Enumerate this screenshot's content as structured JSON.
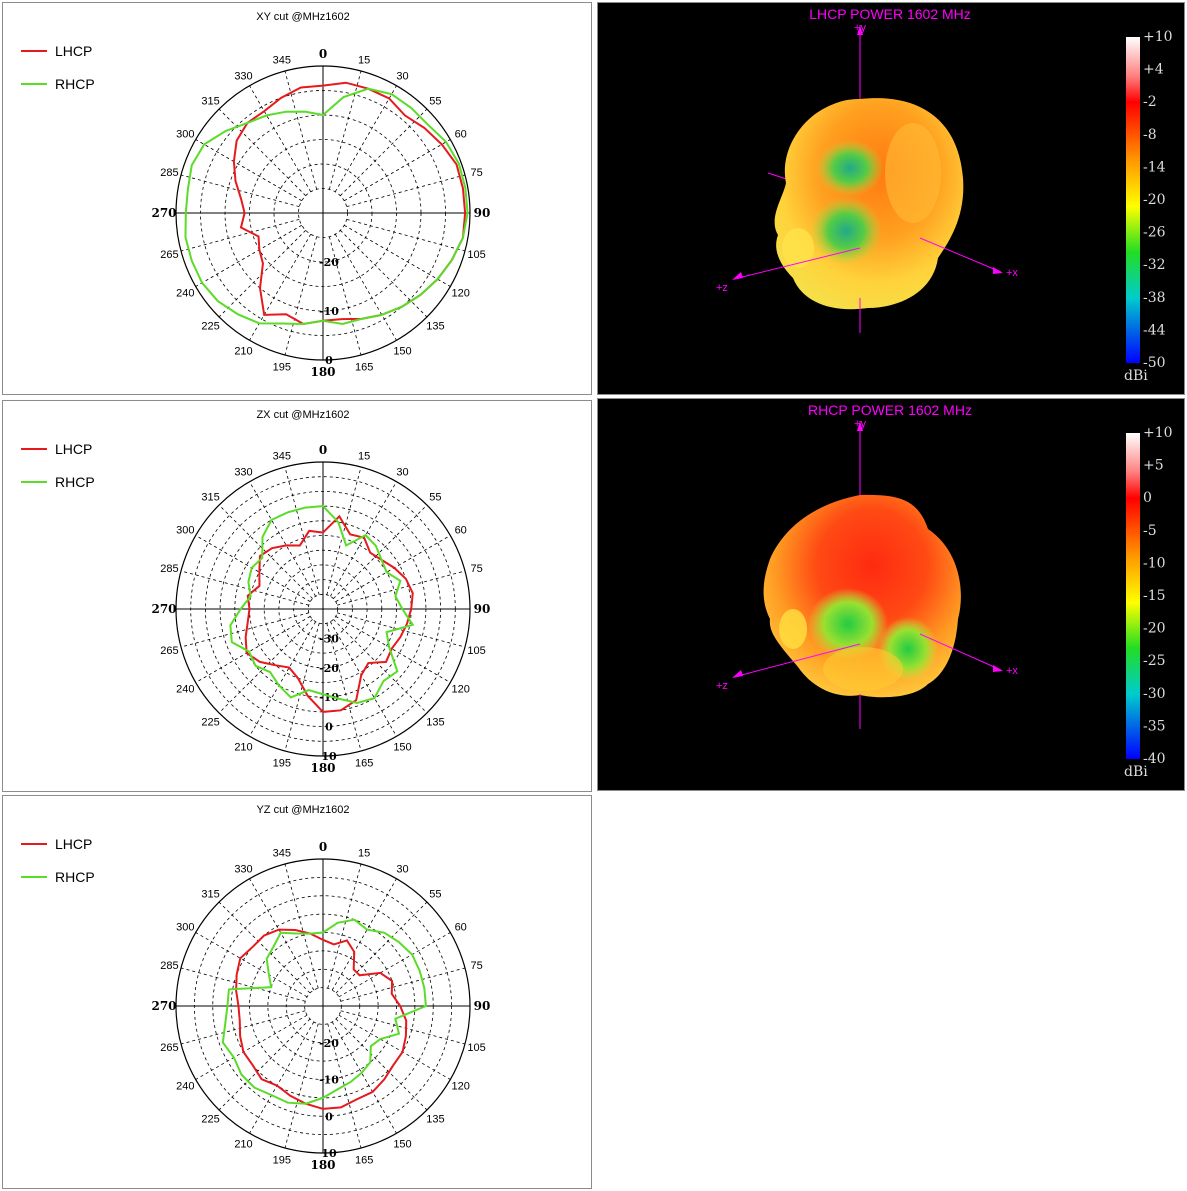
{
  "colors": {
    "lhcp": "#e6191c",
    "rhcp": "#5adc28",
    "axis3d": "#ff00ff",
    "panel_border": "#8c8c8c"
  },
  "chart_data": [
    {
      "type": "polar",
      "title": "XY cut @MHz1602",
      "angle_labels": [
        "0",
        "15",
        "30",
        "55",
        "60",
        "75",
        "90",
        "105",
        "120",
        "135",
        "150",
        "165",
        "180",
        "195",
        "210",
        "225",
        "240",
        "265",
        "270",
        "285",
        "300",
        "315",
        "330",
        "345"
      ],
      "radial_labels": [
        "-20",
        "-10",
        "0"
      ],
      "rlim": [
        -30,
        0
      ],
      "rings": [
        -25,
        -20,
        -15,
        -10,
        -5,
        0
      ],
      "grid": true,
      "legend_position": "top-left",
      "series": [
        {
          "name": "LHCP",
          "values": [
            -4,
            -3,
            -3,
            -3,
            -4,
            -3,
            -2,
            -1,
            -1,
            -1,
            -1,
            -2,
            -3,
            -4,
            -5,
            -6,
            -7,
            -8,
            -8,
            -7,
            -8,
            -6,
            -10,
            -14,
            -15,
            -16,
            -13,
            -14,
            -13,
            -11,
            -9,
            -7,
            -6,
            -6,
            -5,
            -4
          ],
          "angles": [
            0,
            10,
            20,
            30,
            40,
            50,
            60,
            70,
            80,
            90,
            100,
            110,
            120,
            130,
            140,
            150,
            160,
            170,
            180,
            190,
            200,
            210,
            220,
            230,
            240,
            250,
            260,
            270,
            280,
            290,
            300,
            310,
            320,
            330,
            340,
            350
          ]
        },
        {
          "name": "RHCP",
          "values": [
            -10,
            -6,
            -3,
            -2,
            -2,
            -2,
            -1,
            -0.5,
            -0.5,
            -0.5,
            -1,
            -2,
            -3,
            -4,
            -5,
            -6,
            -7,
            -7,
            -8,
            -7,
            -6,
            -4,
            -3,
            -2,
            -1.5,
            -1.5,
            -1.5,
            -2,
            -2,
            -1.5,
            -2,
            -4,
            -6,
            -7,
            -8,
            -9
          ],
          "angles": [
            0,
            10,
            20,
            30,
            40,
            50,
            60,
            70,
            80,
            90,
            100,
            110,
            120,
            130,
            140,
            150,
            160,
            170,
            180,
            190,
            200,
            210,
            220,
            230,
            240,
            250,
            260,
            270,
            280,
            290,
            300,
            310,
            320,
            330,
            340,
            350
          ]
        }
      ]
    },
    {
      "type": "polar",
      "title": "ZX cut @MHz1602",
      "angle_labels": [
        "0",
        "15",
        "30",
        "55",
        "60",
        "75",
        "90",
        "105",
        "120",
        "135",
        "150",
        "165",
        "180",
        "195",
        "210",
        "225",
        "240",
        "265",
        "270",
        "285",
        "300",
        "315",
        "330",
        "345"
      ],
      "radial_labels": [
        "-30",
        "-20",
        "-10",
        "0",
        "10"
      ],
      "rlim": [
        -40,
        10
      ],
      "rings": [
        -35,
        -30,
        -25,
        -20,
        -15,
        -10,
        -5,
        0,
        5,
        10
      ],
      "grid": true,
      "legend_position": "top-left",
      "series": [
        {
          "name": "LHCP",
          "values": [
            -14,
            -8,
            -13,
            -12,
            -15,
            -14,
            -12,
            -10,
            -9,
            -10,
            -11,
            -12,
            -13,
            -12,
            -16,
            -14,
            -7,
            -5,
            -5,
            -10,
            -15,
            -17,
            -15,
            -12,
            -10,
            -12,
            -14,
            -15,
            -14,
            -17,
            -15,
            -12,
            -13,
            -15,
            -17,
            -13
          ],
          "angles": [
            0,
            10,
            20,
            30,
            40,
            50,
            60,
            70,
            80,
            90,
            100,
            110,
            120,
            130,
            140,
            150,
            160,
            170,
            180,
            190,
            200,
            210,
            220,
            230,
            240,
            250,
            260,
            270,
            280,
            290,
            300,
            310,
            320,
            330,
            340,
            350
          ]
        },
        {
          "name": "RHCP",
          "values": [
            -5,
            -10,
            -17,
            -11,
            -12,
            -14,
            -15,
            -12,
            -15,
            -13,
            -9,
            -17,
            -14,
            -7,
            -8,
            -5,
            -6,
            -9,
            -11,
            -12,
            -8,
            -10,
            -12,
            -10,
            -11,
            -7,
            -8,
            -12,
            -15,
            -13,
            -12,
            -13,
            -8,
            -5,
            -5,
            -5
          ],
          "angles": [
            0,
            10,
            20,
            30,
            40,
            50,
            60,
            70,
            80,
            90,
            100,
            110,
            120,
            130,
            140,
            150,
            160,
            170,
            180,
            190,
            200,
            210,
            220,
            230,
            240,
            250,
            260,
            270,
            280,
            290,
            300,
            310,
            320,
            330,
            340,
            350
          ]
        }
      ]
    },
    {
      "type": "polar",
      "title": "YZ cut @MHz1602",
      "angle_labels": [
        "0",
        "15",
        "30",
        "55",
        "60",
        "75",
        "90",
        "105",
        "120",
        "135",
        "150",
        "165",
        "180",
        "195",
        "210",
        "225",
        "240",
        "265",
        "270",
        "285",
        "300",
        "315",
        "330",
        "345"
      ],
      "radial_labels": [
        "-20",
        "-10",
        "0",
        "10"
      ],
      "rlim": [
        -30,
        10
      ],
      "rings": [
        -25,
        -20,
        -15,
        -10,
        -5,
        0,
        5,
        10
      ],
      "grid": true,
      "legend_position": "top-left",
      "series": [
        {
          "name": "LHCP",
          "values": [
            -12,
            -13,
            -11,
            -13,
            -17,
            -17,
            -12,
            -10,
            -11,
            -9,
            -7,
            -6,
            -5,
            -5,
            -4,
            -3,
            -3,
            -2,
            -2,
            -3,
            -4,
            -5,
            -4,
            -5,
            -5,
            -6,
            -7,
            -7,
            -6,
            -5,
            -4,
            -5,
            -5,
            -6,
            -8,
            -10
          ],
          "angles": [
            0,
            10,
            20,
            30,
            40,
            50,
            60,
            70,
            80,
            90,
            100,
            110,
            120,
            130,
            140,
            150,
            160,
            170,
            180,
            190,
            200,
            210,
            220,
            230,
            240,
            250,
            260,
            270,
            280,
            290,
            300,
            310,
            320,
            330,
            340,
            350
          ]
        },
        {
          "name": "RHCP",
          "values": [
            -10,
            -7,
            -5,
            -6,
            -4,
            -3,
            -2,
            -2,
            -2,
            -2,
            -10,
            -8,
            -12,
            -13,
            -10,
            -9,
            -8,
            -7,
            -5,
            -3,
            -2,
            -2,
            -1,
            -1,
            -2,
            -1,
            -3,
            -4,
            -4,
            -15,
            -13,
            -10,
            -9,
            -7,
            -9,
            -10
          ],
          "angles": [
            0,
            10,
            20,
            30,
            40,
            50,
            60,
            70,
            80,
            90,
            100,
            110,
            120,
            130,
            140,
            150,
            160,
            170,
            180,
            190,
            200,
            210,
            220,
            230,
            240,
            250,
            260,
            270,
            280,
            290,
            300,
            310,
            320,
            330,
            340,
            350
          ]
        }
      ]
    },
    {
      "type": "heatmap",
      "title": "LHCP POWER 1602  MHz",
      "colorbar_ticks": [
        "+10",
        "+4",
        "-2",
        "-8",
        "-14",
        "-20",
        "-26",
        "-32",
        "-38",
        "-44",
        "-50"
      ],
      "colorbar_unit": "dBi",
      "axis_labels": {
        "x": "+x",
        "z": "+z",
        "y": "+y"
      }
    },
    {
      "type": "heatmap",
      "title": "RHCP POWER 1602  MHz",
      "colorbar_ticks": [
        "+10",
        "+5",
        "0",
        "-5",
        "-10",
        "-15",
        "-20",
        "-25",
        "-30",
        "-35",
        "-40"
      ],
      "colorbar_unit": "dBi",
      "axis_labels": {
        "x": "+x",
        "z": "+z",
        "y": "+y"
      }
    }
  ]
}
